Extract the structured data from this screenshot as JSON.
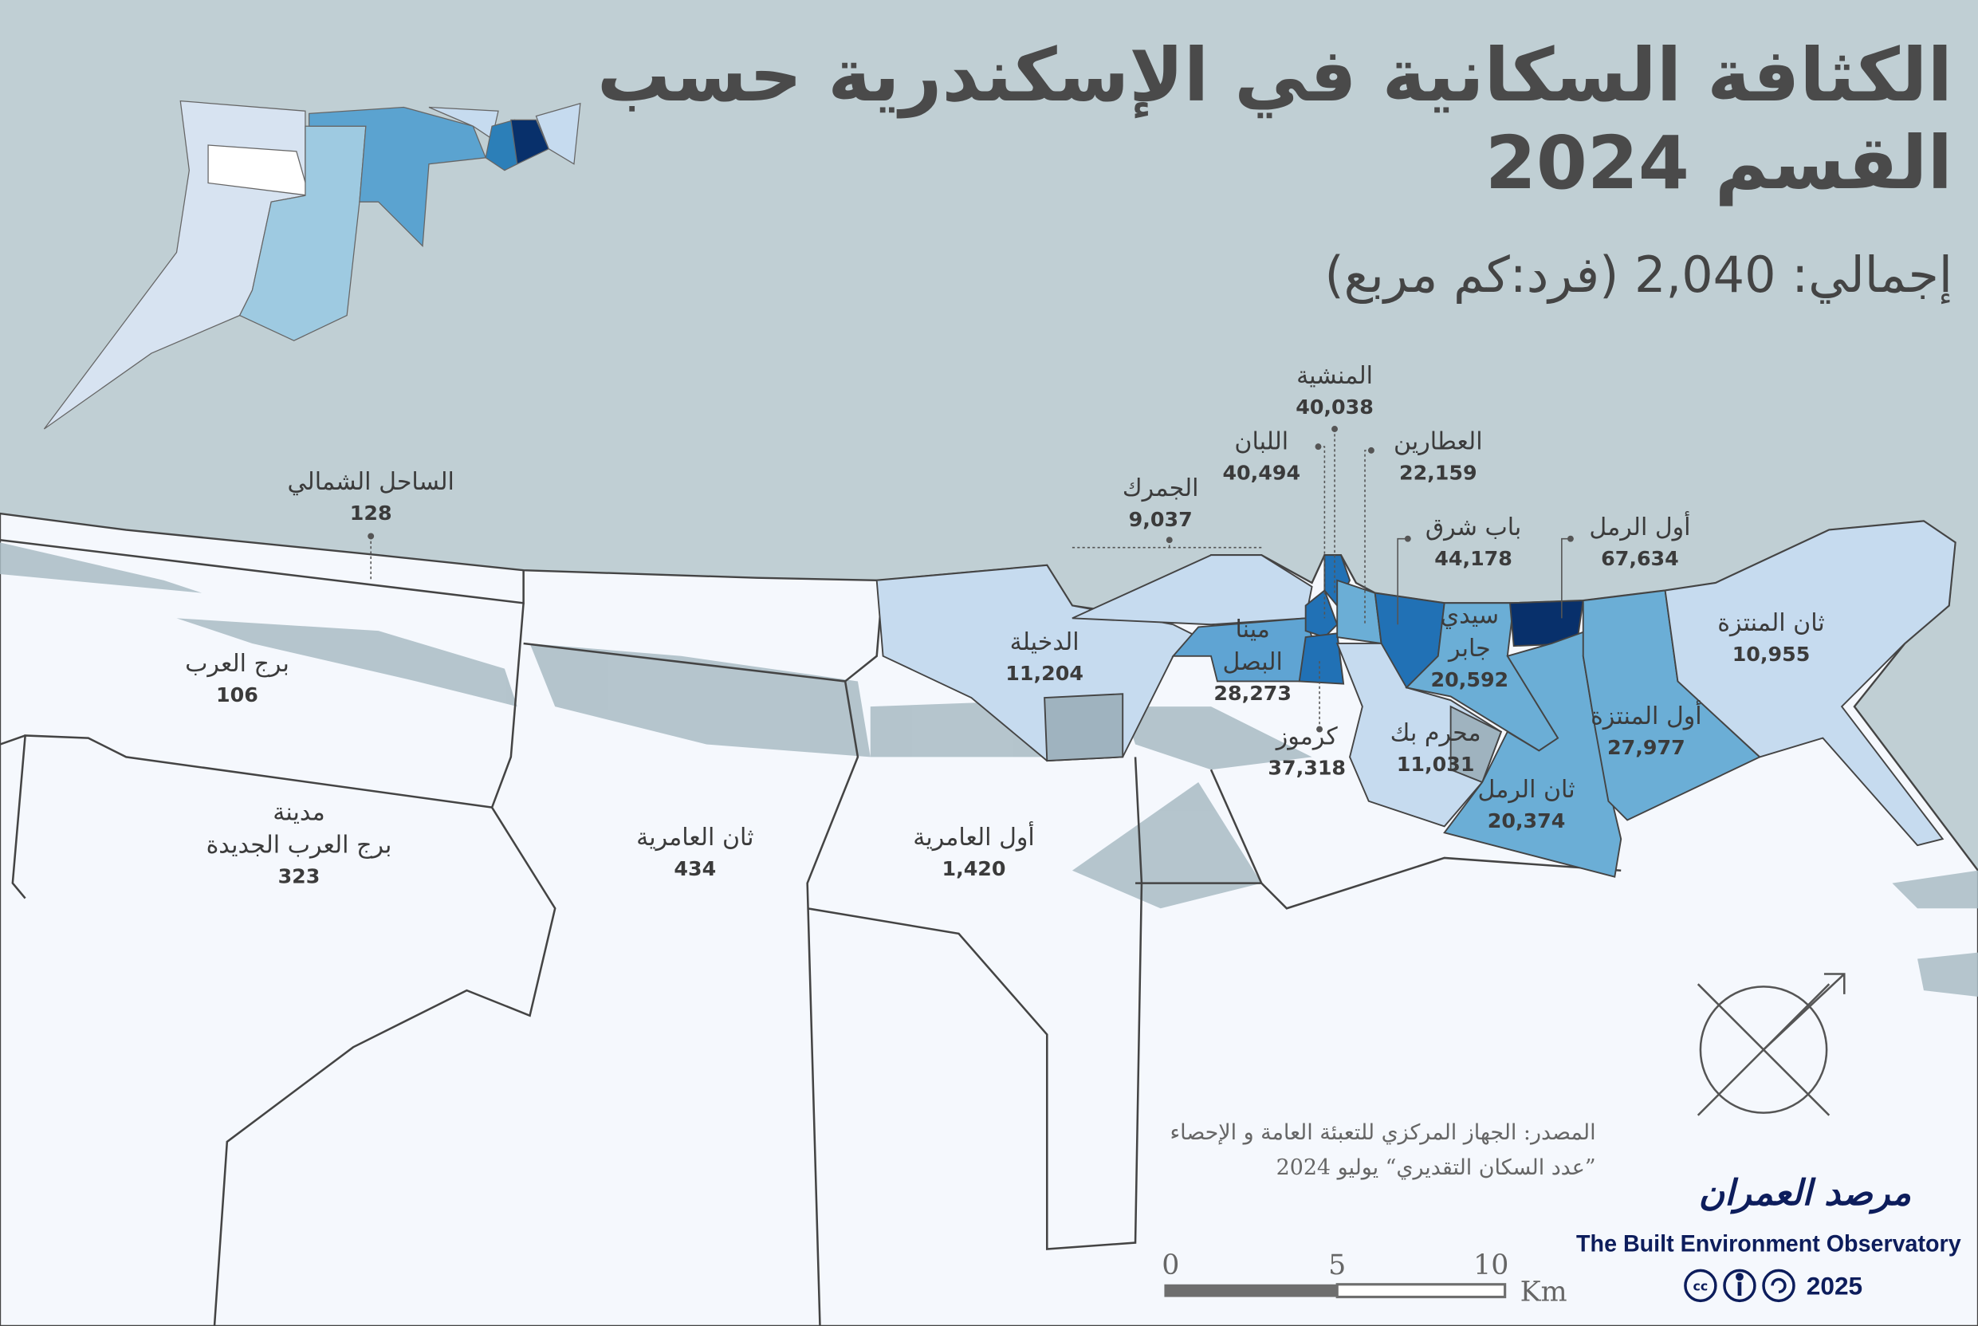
{
  "header": {
    "title_line1": "الكثافة السكانية في الإسكندرية حسب",
    "title_line2": "القسم 2024",
    "subtitle": "إجمالي: 2,040 (فرد:كم مربع)"
  },
  "colors": {
    "sea": "#c0cfd4",
    "land": "#f5f8fd",
    "class_1": "#f5f8fd",
    "class_2": "#c6dbef",
    "class_3": "#6baed6",
    "class_4": "#2171b5",
    "class_5": "#08306b",
    "agriculture_lakes": "#a9bcc4",
    "brand": "#0d1d5c"
  },
  "districts": [
    {
      "name": "الساحل الشمالي",
      "value": "128"
    },
    {
      "name": "برج العرب",
      "value": "106"
    },
    {
      "name": "مدينة\nبرج العرب الجديدة",
      "value": "323"
    },
    {
      "name": "ثان العامرية",
      "value": "434"
    },
    {
      "name": "أول العامرية",
      "value": "1,420"
    },
    {
      "name": "الدخيلة",
      "value": "11,204"
    },
    {
      "name": "الجمرك",
      "value": "9,037"
    },
    {
      "name": "اللبان",
      "value": "40,494"
    },
    {
      "name": "المنشية",
      "value": "40,038"
    },
    {
      "name": "العطارين",
      "value": "22,159"
    },
    {
      "name": "باب شرق",
      "value": "44,178"
    },
    {
      "name": "أول الرمل",
      "value": "67,634"
    },
    {
      "name": "مينا\nالبصل",
      "value": "28,273"
    },
    {
      "name": "سيدي\nجابر",
      "value": "20,592"
    },
    {
      "name": "كرموز",
      "value": "37,318"
    },
    {
      "name": "محرم بك",
      "value": "11,031"
    },
    {
      "name": "ثان الرمل",
      "value": "20,374"
    },
    {
      "name": "أول المنتزة",
      "value": "27,977"
    },
    {
      "name": "ثان المنتزة",
      "value": "10,955"
    }
  ],
  "scale_bar": {
    "ticks": [
      "0",
      "5",
      "10"
    ],
    "unit": "Km"
  },
  "compass": {
    "icon": "north-arrow-icon"
  },
  "source": {
    "line1": "المصدر: الجهاز المركزي للتعبئة العامة و الإحصاء",
    "line2": "”عدد السكان التقديري“ يوليو 2024"
  },
  "branding": {
    "logo_ar": "مرصد العمران",
    "logo_en": "The Built Environment Observatory",
    "license_icons": [
      "cc-icon",
      "by-icon",
      "sa-icon"
    ],
    "year": "2025"
  }
}
